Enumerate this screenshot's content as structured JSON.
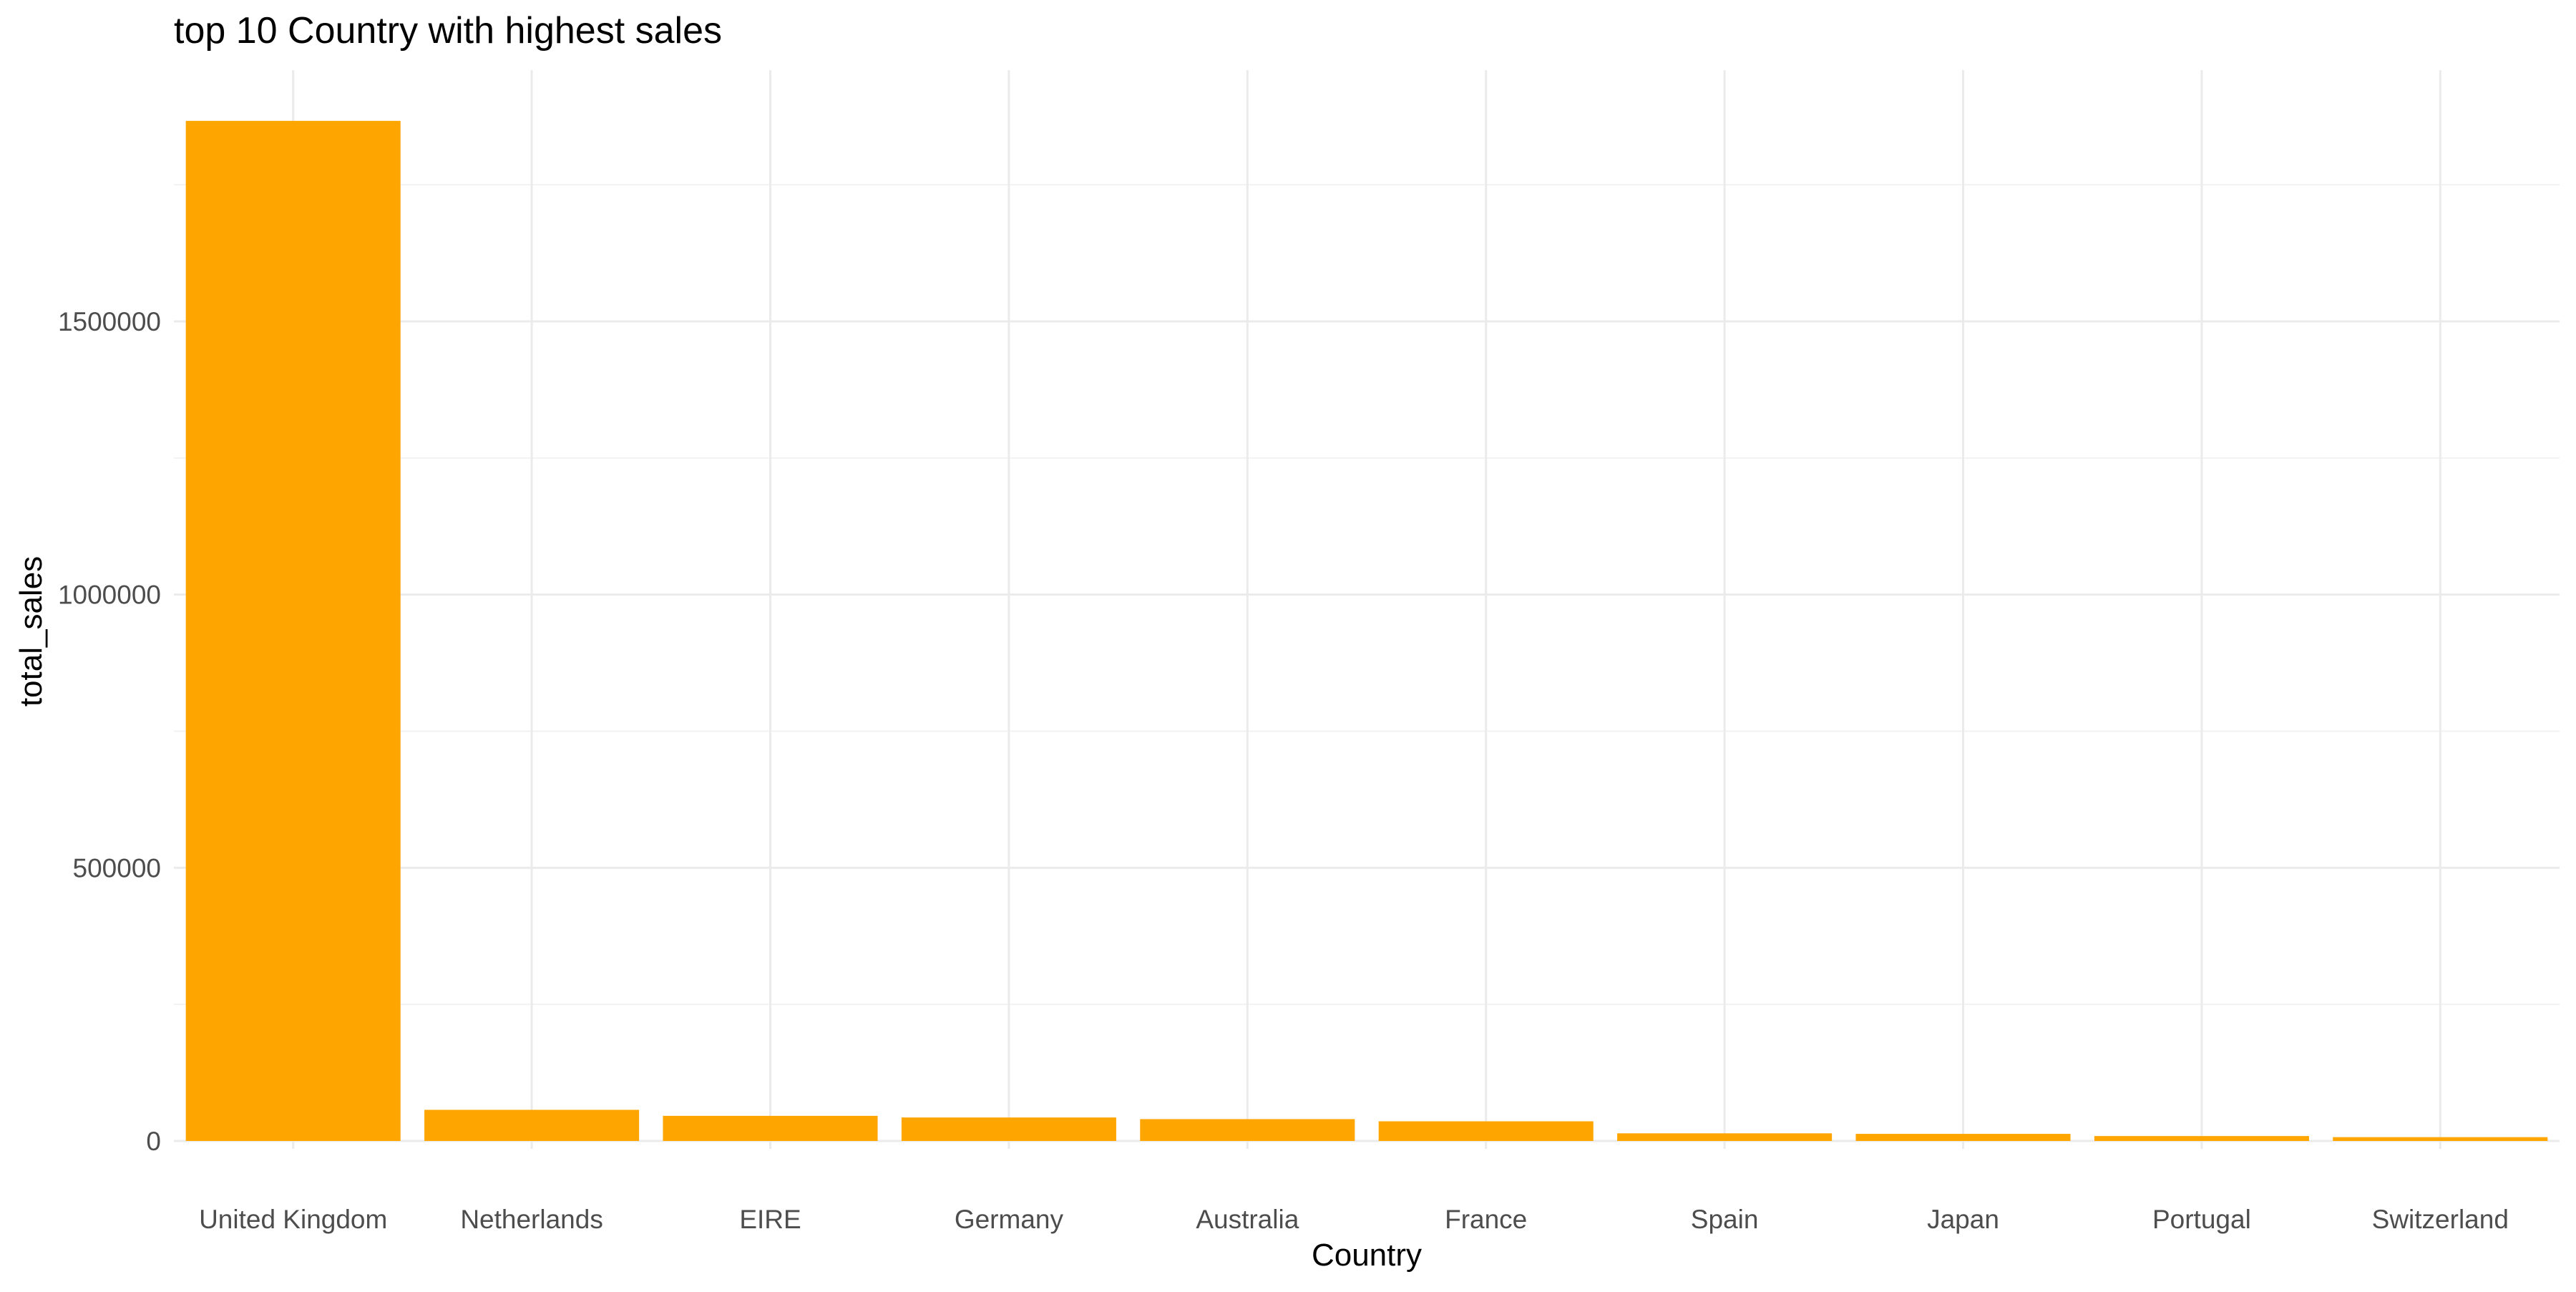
{
  "chart_data": {
    "type": "bar",
    "title": "top 10 Country with highest sales",
    "xlabel": "Country",
    "ylabel": "total_sales",
    "categories": [
      "United Kingdom",
      "Netherlands",
      "EIRE",
      "Germany",
      "Australia",
      "France",
      "Spain",
      "Japan",
      "Portugal",
      "Switzerland"
    ],
    "values": [
      1867000,
      57000,
      46000,
      43000,
      40000,
      36000,
      14000,
      13000,
      9000,
      7000
    ],
    "y_ticks": [
      0,
      500000,
      1000000,
      1500000
    ],
    "y_tick_labels": [
      "0",
      "500000",
      "1000000",
      "1500000"
    ],
    "ylim": [
      0,
      2000000
    ],
    "bar_color": "#FFA500",
    "grid_major_color": "#EBEBEB",
    "grid_minor_color": "#F2F2F2",
    "grid": true,
    "legend": "none"
  }
}
